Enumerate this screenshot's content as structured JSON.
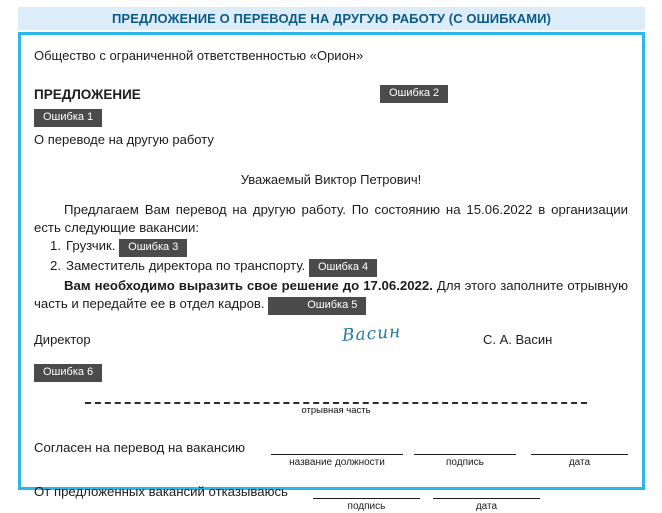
{
  "header": {
    "title": "ПРЕДЛОЖЕНИЕ О ПЕРЕВОДЕ НА ДРУГУЮ РАБОТУ (С ОШИБКАМИ)"
  },
  "doc": {
    "company": "Общество с ограниченной ответственностью «Орион»",
    "doc_type": "ПРЕДЛОЖЕНИЕ",
    "subject": "О переводе на другую работу",
    "salutation": "Уважаемый Виктор Петрович!",
    "intro": "Предлагаем Вам перевод на другую работу. По состоянию на 15.06.2022 в организации есть следующие вакансии:",
    "vacancies": [
      {
        "num": "1.",
        "text": "Грузчик.",
        "badge": "Ошибка 3"
      },
      {
        "num": "2.",
        "text": "Заместитель директора по транспорту.",
        "badge": "Ошибка 4"
      }
    ],
    "decision_bold": "Вам необходимо выразить свое решение до 17.06.2022.",
    "decision_rest": " Для этого заполните отрывную часть и передайте ее в отдел кадров. ",
    "badge1": "Ошибка 1",
    "badge2": "Ошибка 2",
    "badge5": "Ошибка 5",
    "badge6": "Ошибка 6",
    "signature": {
      "role": "Директор",
      "autograph": "Васин",
      "name": "С. А. Васин"
    },
    "tear_label": "отрывная часть",
    "form": {
      "agree_label": "Согласен на перевод на вакансию",
      "agree_fields": [
        "название должности",
        "подпись",
        "дата"
      ],
      "decline_label": "От предложенных вакансий отказываюсь",
      "decline_fields": [
        "подпись",
        "дата"
      ]
    }
  },
  "colors": {
    "header_bg": "#dcedf9",
    "header_text": "#0d5a87",
    "doc_border": "#2bb7ea",
    "badge_bg": "#4b4b4b",
    "badge_text": "#ffffff",
    "signature_ink": "#2579a7"
  }
}
